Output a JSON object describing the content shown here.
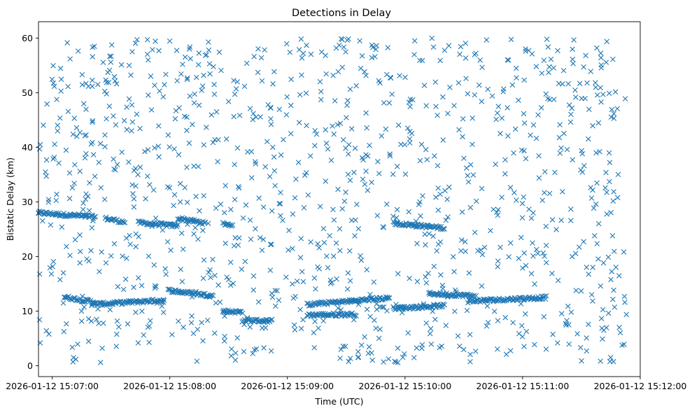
{
  "chart_data": {
    "type": "scatter",
    "title": "Detections in Delay",
    "xlabel": "Time (UTC)",
    "ylabel": "Bistatic Delay (km)",
    "marker": "x",
    "color": "#1f77b4",
    "grid": false,
    "xlim": [
      "2026-01-12 15:06:53",
      "2026-01-12 15:12:00"
    ],
    "ylim": [
      -2,
      63
    ],
    "x_ticks": [
      "2026-01-12 15:07:00",
      "2026-01-12 15:08:00",
      "2026-01-12 15:09:00",
      "2026-01-12 15:10:00",
      "2026-01-12 15:11:00",
      "2026-01-12 15:12:00"
    ],
    "y_ticks": [
      0,
      10,
      20,
      30,
      40,
      50,
      60
    ],
    "series": [
      {
        "values_note_free": true,
        "tracks": [
          {
            "start": "2026-01-12 15:06:53",
            "end": "2026-01-12 15:07:22",
            "delay_start": 28.0,
            "delay_end": 27.2
          },
          {
            "start": "2026-01-12 15:07:27",
            "end": "2026-01-12 15:07:37",
            "delay_start": 27.0,
            "delay_end": 26.3
          },
          {
            "start": "2026-01-12 15:07:44",
            "end": "2026-01-12 15:08:04",
            "delay_start": 26.2,
            "delay_end": 25.6
          },
          {
            "start": "2026-01-12 15:08:04",
            "end": "2026-01-12 15:08:18",
            "delay_start": 27.0,
            "delay_end": 26.1
          },
          {
            "start": "2026-01-12 15:08:27",
            "end": "2026-01-12 15:08:32",
            "delay_start": 26.0,
            "delay_end": 25.8
          },
          {
            "start": "2026-01-12 15:09:54",
            "end": "2026-01-12 15:10:20",
            "delay_start": 26.1,
            "delay_end": 25.2
          },
          {
            "start": "2026-01-12 15:07:06",
            "end": "2026-01-12 15:07:22",
            "delay_start": 12.6,
            "delay_end": 11.6
          },
          {
            "start": "2026-01-12 15:07:20",
            "end": "2026-01-12 15:07:57",
            "delay_start": 11.2,
            "delay_end": 12.0
          },
          {
            "start": "2026-01-12 15:07:59",
            "end": "2026-01-12 15:08:22",
            "delay_start": 13.8,
            "delay_end": 12.8
          },
          {
            "start": "2026-01-12 15:08:27",
            "end": "2026-01-12 15:08:37",
            "delay_start": 10.0,
            "delay_end": 9.8
          },
          {
            "start": "2026-01-12 15:08:37",
            "end": "2026-01-12 15:08:52",
            "delay_start": 8.3,
            "delay_end": 8.2
          },
          {
            "start": "2026-01-12 15:09:10",
            "end": "2026-01-12 15:09:52",
            "delay_start": 11.2,
            "delay_end": 12.4
          },
          {
            "start": "2026-01-12 15:09:10",
            "end": "2026-01-12 15:09:35",
            "delay_start": 9.3,
            "delay_end": 9.4
          },
          {
            "start": "2026-01-12 15:09:54",
            "end": "2026-01-12 15:10:20",
            "delay_start": 10.5,
            "delay_end": 11.0
          },
          {
            "start": "2026-01-12 15:10:12",
            "end": "2026-01-12 15:10:35",
            "delay_start": 13.2,
            "delay_end": 12.8
          },
          {
            "start": "2026-01-12 15:10:32",
            "end": "2026-01-12 15:11:12",
            "delay_start": 11.8,
            "delay_end": 12.5
          }
        ],
        "clutter": {
          "count": 1100,
          "delay_range": [
            0.5,
            60
          ],
          "start": "2026-01-12 15:06:53",
          "end": "2026-01-12 15:11:53"
        }
      }
    ]
  }
}
